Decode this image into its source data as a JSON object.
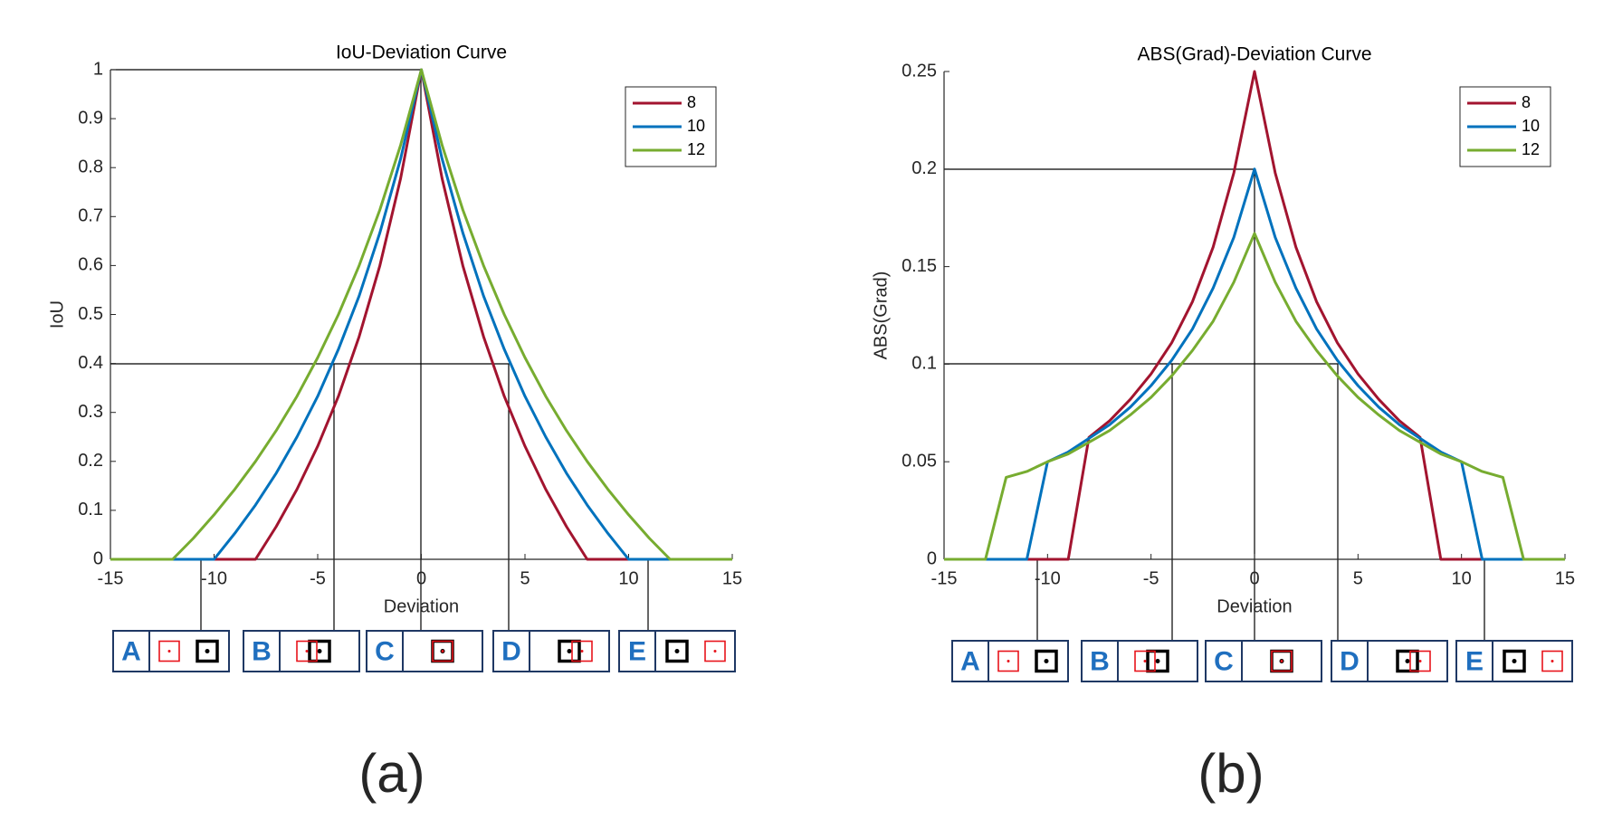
{
  "chart_data": [
    {
      "type": "line",
      "title": "IoU-Deviation Curve",
      "x_label": "Deviation",
      "y_label": "IoU",
      "x": [
        -15,
        -14,
        -13,
        -12,
        -11,
        -10,
        -9,
        -8,
        -7,
        -6,
        -5,
        -4,
        -3,
        -2,
        -1,
        0,
        1,
        2,
        3,
        4,
        5,
        6,
        7,
        8,
        9,
        10,
        11,
        12,
        13,
        14,
        15
      ],
      "series": [
        {
          "name": "8",
          "color": "#a2142f",
          "values": [
            0,
            0,
            0,
            0,
            0,
            0,
            0,
            0,
            0.067,
            0.143,
            0.231,
            0.333,
            0.455,
            0.6,
            0.778,
            1,
            0.778,
            0.6,
            0.455,
            0.333,
            0.231,
            0.143,
            0.067,
            0,
            0,
            0,
            0,
            0,
            0,
            0,
            0
          ]
        },
        {
          "name": "10",
          "color": "#0072bd",
          "values": [
            0,
            0,
            0,
            0,
            0,
            0,
            0.053,
            0.111,
            0.176,
            0.25,
            0.333,
            0.429,
            0.538,
            0.667,
            0.818,
            1,
            0.818,
            0.667,
            0.538,
            0.429,
            0.333,
            0.25,
            0.176,
            0.111,
            0.053,
            0,
            0,
            0,
            0,
            0,
            0
          ]
        },
        {
          "name": "12",
          "color": "#77ac30",
          "values": [
            0,
            0,
            0,
            0,
            0.043,
            0.091,
            0.143,
            0.2,
            0.263,
            0.333,
            0.412,
            0.5,
            0.6,
            0.714,
            0.846,
            1,
            0.846,
            0.714,
            0.6,
            0.5,
            0.412,
            0.333,
            0.263,
            0.2,
            0.143,
            0.091,
            0.043,
            0,
            0,
            0,
            0
          ]
        }
      ],
      "xlim": [
        -15,
        15
      ],
      "xticks": [
        -15,
        -10,
        -5,
        0,
        5,
        10,
        15
      ],
      "ylim": [
        0,
        1
      ],
      "yticks": [
        0,
        0.1,
        0.2,
        0.3,
        0.4,
        0.5,
        0.6,
        0.7,
        0.8,
        0.9,
        1
      ],
      "legend": "top-right"
    },
    {
      "type": "line",
      "title": "ABS(Grad)-Deviation Curve",
      "x_label": "Deviation",
      "y_label": "ABS(Grad)",
      "x": [
        -15,
        -14,
        -13,
        -12,
        -11,
        -10,
        -9,
        -8,
        -7,
        -6,
        -5,
        -4,
        -3,
        -2,
        -1,
        0,
        1,
        2,
        3,
        4,
        5,
        6,
        7,
        8,
        9,
        10,
        11,
        12,
        13,
        14,
        15
      ],
      "series": [
        {
          "name": "8",
          "color": "#a2142f",
          "values": [
            0,
            0,
            0,
            0,
            0,
            0,
            0,
            0.0625,
            0.071,
            0.082,
            0.095,
            0.111,
            0.132,
            0.16,
            0.198,
            0.25,
            0.198,
            0.16,
            0.132,
            0.111,
            0.095,
            0.082,
            0.071,
            0.0625,
            0,
            0,
            0,
            0,
            0,
            0,
            0
          ]
        },
        {
          "name": "10",
          "color": "#0072bd",
          "values": [
            0,
            0,
            0,
            0,
            0,
            0.05,
            0.055,
            0.062,
            0.069,
            0.078,
            0.089,
            0.102,
            0.118,
            0.139,
            0.165,
            0.2,
            0.165,
            0.139,
            0.118,
            0.102,
            0.089,
            0.078,
            0.069,
            0.062,
            0.055,
            0.05,
            0,
            0,
            0,
            0,
            0
          ]
        },
        {
          "name": "12",
          "color": "#77ac30",
          "values": [
            0,
            0,
            0,
            0.042,
            0.045,
            0.05,
            0.054,
            0.06,
            0.066,
            0.074,
            0.083,
            0.094,
            0.107,
            0.122,
            0.142,
            0.167,
            0.142,
            0.122,
            0.107,
            0.094,
            0.083,
            0.074,
            0.066,
            0.06,
            0.054,
            0.05,
            0.045,
            0.042,
            0,
            0,
            0
          ]
        }
      ],
      "xlim": [
        -15,
        15
      ],
      "xticks": [
        -15,
        -10,
        -5,
        0,
        5,
        10,
        15
      ],
      "ylim": [
        0,
        0.25
      ],
      "yticks": [
        0,
        0.05,
        0.1,
        0.15,
        0.2,
        0.25
      ],
      "legend": "top-right"
    }
  ],
  "figure": {
    "captions": [
      "(a)",
      "(b)"
    ],
    "states": [
      "A",
      "B",
      "C",
      "D",
      "E"
    ]
  }
}
